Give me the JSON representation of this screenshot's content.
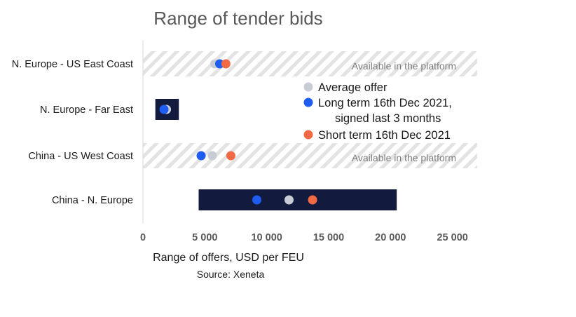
{
  "chart_data": {
    "type": "range-dot",
    "title": "Range of tender bids",
    "xlabel": "Range of offers, USD per FEU",
    "source": "Source: Xeneta",
    "xlim": [
      0,
      27000
    ],
    "xticks": [
      0,
      5000,
      10000,
      15000,
      20000,
      25000
    ],
    "xtick_labels": [
      "0",
      "5 000",
      "10 000",
      "15 000",
      "20 000",
      "25 000"
    ],
    "categories": [
      "N. Europe - US East Coast",
      "N. Europe - Far East",
      "China - US West Coast",
      "China - N. Europe"
    ],
    "ranges": [
      {
        "category": "N. Europe - US East Coast",
        "min": null,
        "max": null,
        "note": "Available in the platform"
      },
      {
        "category": "N. Europe - Far East",
        "min": 1000,
        "max": 2900,
        "note": ""
      },
      {
        "category": "China - US West Coast",
        "min": null,
        "max": null,
        "note": "Available in the platform"
      },
      {
        "category": "China - N. Europe",
        "min": 4500,
        "max": 20500,
        "note": ""
      }
    ],
    "series": [
      {
        "name": "Average offer",
        "color": "#c8ccd4",
        "values": [
          5800,
          1900,
          5600,
          11800
        ]
      },
      {
        "name": "Long term 16th Dec 2021, signed last 3 months",
        "color": "#1f5cf2",
        "values": [
          6200,
          1700,
          4700,
          9200
        ]
      },
      {
        "name": "Short term 16th Dec 2021",
        "color": "#f26a45",
        "values": [
          6700,
          null,
          7100,
          13700
        ]
      }
    ],
    "legend_lines": [
      {
        "color": "#c8ccd4",
        "lines": [
          "Average offer"
        ]
      },
      {
        "color": "#1f5cf2",
        "lines": [
          "Long term 16th Dec 2021,",
          "signed last 3 months"
        ]
      },
      {
        "color": "#f26a45",
        "lines": [
          "Short term 16th Dec 2021"
        ]
      }
    ],
    "legend_position": "right-center",
    "grid": false
  },
  "colors": {
    "range_bar": "#121a3d",
    "hatch": "#d9d9d9",
    "axis": "#bfbfbf"
  }
}
